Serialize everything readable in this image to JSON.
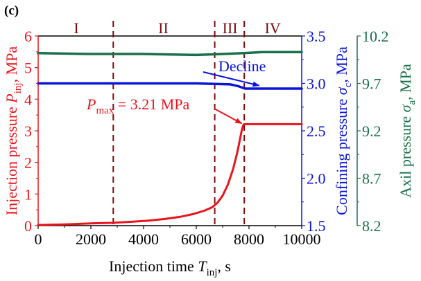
{
  "panel_label": "(c)",
  "colors": {
    "injection": "#e8141c",
    "confining": "#0a14d8",
    "axial": "#17704a",
    "region_line": "#7a0a10",
    "axis_black": "#000000"
  },
  "chart_data": {
    "type": "line",
    "title": "",
    "xlabel": {
      "main": "Injection time ",
      "var": "T",
      "sub": "inj",
      "unit": ", s"
    },
    "xlim": [
      0,
      10000
    ],
    "xticks": [
      0,
      2000,
      4000,
      6000,
      8000,
      10000
    ],
    "xtick_labels": [
      "0",
      "2000",
      "4000",
      "6000",
      "8000",
      "10000"
    ],
    "axes": {
      "left": {
        "label": {
          "main": "Injection pressure ",
          "var": "P",
          "sub": "inj",
          "unit": ", MPa"
        },
        "ylim": [
          0,
          6
        ],
        "ticks": [
          0,
          1,
          2,
          3,
          4,
          5,
          6
        ],
        "tick_labels": [
          "0",
          "1",
          "2",
          "3",
          "4",
          "5",
          "6"
        ],
        "color": "#e8141c"
      },
      "right1": {
        "label": {
          "main": "Confining pressure ",
          "var": "σ",
          "sub": "c",
          "unit": ", MPa"
        },
        "ylim": [
          1.5,
          3.5
        ],
        "ticks": [
          1.5,
          2.0,
          2.5,
          3.0,
          3.5
        ],
        "tick_labels": [
          "1.5",
          "2.0",
          "2.5",
          "3.0",
          "3.5"
        ],
        "color": "#0a14d8"
      },
      "right2": {
        "label": {
          "main": "Axil pressure ",
          "var": "σ",
          "sub": "a",
          "unit": ", MPa"
        },
        "ylim": [
          8.2,
          10.2
        ],
        "ticks": [
          8.2,
          8.7,
          9.2,
          9.7,
          10.2
        ],
        "tick_labels": [
          "8.2",
          "8.7",
          "9.2",
          "9.7",
          "10.2"
        ],
        "color": "#17704a"
      }
    },
    "series": [
      {
        "name": "Injection pressure",
        "axis": "left",
        "color": "#e8141c",
        "x": [
          0,
          1000,
          2000,
          2850,
          3500,
          4200,
          4800,
          5400,
          5900,
          6300,
          6600,
          6800,
          7000,
          7200,
          7400,
          7550,
          7650,
          7720,
          7770,
          7800,
          7820,
          7900,
          8500,
          9000,
          9500,
          10000
        ],
        "y": [
          0.02,
          0.04,
          0.07,
          0.09,
          0.12,
          0.16,
          0.21,
          0.28,
          0.37,
          0.47,
          0.58,
          0.72,
          0.95,
          1.3,
          1.8,
          2.3,
          2.7,
          3.0,
          3.15,
          3.2,
          3.21,
          3.21,
          3.21,
          3.21,
          3.21,
          3.21
        ]
      },
      {
        "name": "Confining pressure",
        "axis": "right1",
        "color": "#0a14d8",
        "x": [
          0,
          2000,
          4000,
          6000,
          6700,
          7300,
          7600,
          7800,
          7850,
          8500,
          9000,
          9500,
          10000
        ],
        "y": [
          3.0,
          3.0,
          3.0,
          3.0,
          2.995,
          2.99,
          2.97,
          2.95,
          2.945,
          2.945,
          2.945,
          2.945,
          2.945
        ]
      },
      {
        "name": "Axial pressure",
        "axis": "right2",
        "color": "#17704a",
        "x": [
          0,
          2000,
          4000,
          6000,
          7000,
          7800,
          8500,
          9000,
          10000
        ],
        "y": [
          10.02,
          10.01,
          10.01,
          10.0,
          10.01,
          10.02,
          10.03,
          10.03,
          10.03
        ]
      }
    ],
    "regions": {
      "boundaries": [
        2850,
        6700,
        7820
      ],
      "labels": [
        {
          "text": "I",
          "x": 1450
        },
        {
          "text": "II",
          "x": 4750
        },
        {
          "text": "III",
          "x": 7280
        },
        {
          "text": "IV",
          "x": 8900
        }
      ]
    },
    "annotations": [
      {
        "name": "pmax",
        "var": "P",
        "sub": "max",
        "text": " = 3.21 MPa",
        "color": "#e8141c",
        "arrow_to": {
          "x": 7800,
          "y": 3.21,
          "axis": "left"
        }
      },
      {
        "name": "decline",
        "text": "Decline",
        "color": "#0a14d8",
        "arrow_to": {
          "x": 8250,
          "y": 2.97,
          "axis": "right1"
        }
      }
    ],
    "grid": false,
    "legend": "none"
  }
}
